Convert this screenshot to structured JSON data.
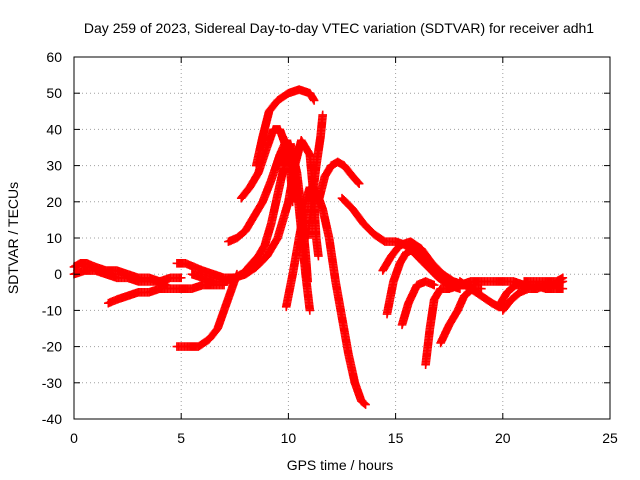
{
  "chart_data": {
    "type": "scatter",
    "title": "Day 259 of 2023, Sidereal Day-to-day VTEC variation (SDTVAR) for receiver adh1",
    "xlabel": "GPS time / hours",
    "ylabel": "SDTVAR / TECUs",
    "xlim": [
      0,
      25
    ],
    "ylim": [
      -40,
      60
    ],
    "xticks": [
      "0",
      "5",
      "10",
      "15",
      "20",
      "25"
    ],
    "yticks": [
      "-40",
      "-30",
      "-20",
      "-10",
      "0",
      "10",
      "20",
      "30",
      "40",
      "50",
      "60"
    ],
    "grid": true,
    "marker": "plus",
    "color": "#ff0000",
    "series": [
      {
        "points": [
          [
            0.0,
            2
          ],
          [
            0.3,
            3
          ],
          [
            0.6,
            3
          ],
          [
            1.0,
            2
          ],
          [
            1.5,
            1
          ],
          [
            2.0,
            1
          ],
          [
            2.5,
            0
          ],
          [
            3.0,
            -1
          ],
          [
            3.5,
            -1
          ],
          [
            4.0,
            -2
          ],
          [
            4.3,
            -3
          ]
        ]
      },
      {
        "points": [
          [
            0.0,
            0
          ],
          [
            0.5,
            1
          ],
          [
            1.0,
            1
          ],
          [
            1.5,
            0
          ],
          [
            2.0,
            -1
          ],
          [
            2.5,
            -1
          ],
          [
            3.0,
            -2
          ],
          [
            3.5,
            -2
          ],
          [
            4.0,
            -2
          ],
          [
            4.5,
            -1
          ],
          [
            5.0,
            -1
          ]
        ]
      },
      {
        "points": [
          [
            1.6,
            -8
          ],
          [
            2.0,
            -7
          ],
          [
            2.5,
            -6
          ],
          [
            3.0,
            -5
          ],
          [
            3.5,
            -5
          ],
          [
            4.0,
            -4
          ],
          [
            4.5,
            -4
          ],
          [
            5.0,
            -4
          ],
          [
            5.5,
            -4
          ],
          [
            6.0,
            -3
          ],
          [
            6.5,
            -3
          ],
          [
            7.0,
            -3
          ]
        ]
      },
      {
        "points": [
          [
            4.8,
            -20
          ],
          [
            5.3,
            -20
          ],
          [
            5.8,
            -20
          ],
          [
            6.3,
            -18
          ],
          [
            6.7,
            -15
          ],
          [
            7.0,
            -10
          ],
          [
            7.3,
            -5
          ],
          [
            7.6,
            0
          ]
        ]
      },
      {
        "points": [
          [
            4.8,
            3
          ],
          [
            5.2,
            3
          ],
          [
            5.6,
            2
          ],
          [
            6.0,
            1
          ],
          [
            6.5,
            0
          ],
          [
            7.0,
            -1
          ],
          [
            7.5,
            -1
          ],
          [
            8.0,
            0
          ],
          [
            8.5,
            2
          ],
          [
            9.0,
            5
          ],
          [
            9.5,
            10
          ],
          [
            10.0,
            20
          ],
          [
            10.3,
            30
          ],
          [
            10.6,
            37
          ],
          [
            11.0,
            33
          ],
          [
            11.2,
            20
          ],
          [
            11.3,
            10
          ],
          [
            11.4,
            5
          ]
        ]
      },
      {
        "points": [
          [
            5.5,
            0
          ],
          [
            6.0,
            -1
          ],
          [
            6.5,
            -2
          ],
          [
            7.0,
            -2
          ],
          [
            7.5,
            -1
          ],
          [
            7.8,
            0
          ]
        ]
      },
      {
        "points": [
          [
            7.2,
            9
          ],
          [
            7.6,
            10
          ],
          [
            8.0,
            12
          ],
          [
            8.4,
            16
          ],
          [
            8.8,
            20
          ],
          [
            9.2,
            26
          ],
          [
            9.6,
            33
          ],
          [
            9.9,
            37
          ],
          [
            10.2,
            33
          ],
          [
            10.4,
            24
          ],
          [
            10.6,
            12
          ],
          [
            10.8,
            0
          ],
          [
            11.0,
            -10
          ]
        ]
      },
      {
        "points": [
          [
            7.8,
            21
          ],
          [
            8.2,
            24
          ],
          [
            8.6,
            28
          ],
          [
            9.0,
            35
          ],
          [
            9.3,
            40
          ],
          [
            9.6,
            40
          ],
          [
            9.9,
            35
          ],
          [
            10.1,
            28
          ],
          [
            10.2,
            20
          ]
        ]
      },
      {
        "points": [
          [
            8.0,
            1
          ],
          [
            8.3,
            3
          ],
          [
            8.6,
            5
          ],
          [
            8.9,
            8
          ],
          [
            9.2,
            14
          ],
          [
            9.5,
            22
          ],
          [
            9.8,
            30
          ],
          [
            10.1,
            36
          ],
          [
            10.4,
            28
          ],
          [
            10.6,
            18
          ],
          [
            10.8,
            6
          ],
          [
            10.9,
            -2
          ]
        ]
      },
      {
        "points": [
          [
            8.5,
            30
          ],
          [
            8.8,
            38
          ],
          [
            9.1,
            45
          ],
          [
            9.5,
            48
          ],
          [
            10.0,
            50
          ],
          [
            10.5,
            51
          ],
          [
            11.0,
            50
          ],
          [
            11.2,
            48
          ]
        ]
      },
      {
        "points": [
          [
            9.9,
            -9
          ],
          [
            10.2,
            0
          ],
          [
            10.5,
            10
          ],
          [
            10.8,
            20
          ],
          [
            11.0,
            24
          ],
          [
            11.3,
            23
          ],
          [
            11.6,
            18
          ],
          [
            11.9,
            10
          ],
          [
            12.2,
            -2
          ],
          [
            12.5,
            -12
          ],
          [
            12.8,
            -22
          ],
          [
            13.1,
            -30
          ],
          [
            13.4,
            -35
          ],
          [
            13.6,
            -36
          ]
        ]
      },
      {
        "points": [
          [
            10.9,
            10
          ],
          [
            11.1,
            20
          ],
          [
            11.3,
            30
          ],
          [
            11.5,
            38
          ],
          [
            11.6,
            44
          ]
        ]
      },
      {
        "points": [
          [
            11.4,
            20
          ],
          [
            11.7,
            27
          ],
          [
            12.0,
            30
          ],
          [
            12.3,
            31
          ],
          [
            12.6,
            30
          ],
          [
            13.0,
            27
          ],
          [
            13.3,
            25
          ]
        ]
      },
      {
        "points": [
          [
            12.5,
            21
          ],
          [
            13.0,
            18
          ],
          [
            13.5,
            14
          ],
          [
            14.0,
            11
          ],
          [
            14.5,
            9
          ],
          [
            15.0,
            9
          ],
          [
            15.5,
            8
          ],
          [
            16.0,
            5
          ],
          [
            16.5,
            2
          ],
          [
            17.0,
            -1
          ],
          [
            17.5,
            -3
          ],
          [
            18.0,
            -4
          ]
        ]
      },
      {
        "points": [
          [
            14.4,
            1
          ],
          [
            14.8,
            5
          ],
          [
            15.2,
            8
          ],
          [
            15.7,
            9
          ],
          [
            16.2,
            7
          ],
          [
            16.7,
            3
          ],
          [
            17.2,
            0
          ],
          [
            17.7,
            -2
          ],
          [
            18.2,
            -3
          ]
        ]
      },
      {
        "points": [
          [
            14.6,
            -11
          ],
          [
            14.9,
            -2
          ],
          [
            15.2,
            3
          ],
          [
            15.5,
            6
          ],
          [
            15.9,
            7
          ],
          [
            16.3,
            5
          ],
          [
            16.7,
            2
          ],
          [
            17.1,
            -1
          ]
        ]
      },
      {
        "points": [
          [
            15.3,
            -14
          ],
          [
            15.6,
            -8
          ],
          [
            16.0,
            -3
          ],
          [
            16.4,
            -2
          ],
          [
            16.8,
            -3
          ]
        ]
      },
      {
        "points": [
          [
            16.4,
            -25
          ],
          [
            16.6,
            -15
          ],
          [
            16.8,
            -7
          ],
          [
            17.1,
            -4
          ],
          [
            17.5,
            -4
          ],
          [
            18.0,
            -3
          ],
          [
            18.5,
            -3
          ]
        ]
      },
      {
        "points": [
          [
            17.1,
            -19
          ],
          [
            17.5,
            -14
          ],
          [
            17.9,
            -10
          ],
          [
            18.2,
            -6
          ],
          [
            18.6,
            -4
          ],
          [
            19.0,
            -4
          ]
        ]
      },
      {
        "points": [
          [
            17.5,
            -3
          ],
          [
            18.0,
            -3
          ],
          [
            18.5,
            -2
          ],
          [
            19.0,
            -2
          ],
          [
            19.5,
            -2
          ],
          [
            20.0,
            -2
          ],
          [
            20.5,
            -2
          ],
          [
            21.0,
            -3
          ]
        ]
      },
      {
        "points": [
          [
            18.0,
            -2
          ],
          [
            18.5,
            -4
          ],
          [
            19.0,
            -6
          ],
          [
            19.5,
            -8
          ],
          [
            19.8,
            -9
          ],
          [
            20.2,
            -5
          ],
          [
            20.6,
            -3
          ],
          [
            21.0,
            -3
          ],
          [
            21.5,
            -3
          ],
          [
            22.0,
            -4
          ],
          [
            22.5,
            -4
          ],
          [
            22.8,
            -4
          ]
        ]
      },
      {
        "points": [
          [
            20.0,
            -10
          ],
          [
            20.4,
            -7
          ],
          [
            20.8,
            -5
          ],
          [
            21.2,
            -4
          ],
          [
            21.6,
            -4
          ],
          [
            22.0,
            -3
          ],
          [
            22.4,
            -3
          ],
          [
            22.8,
            -2
          ]
        ]
      },
      {
        "points": [
          [
            21.0,
            -2
          ],
          [
            21.5,
            -2
          ],
          [
            22.0,
            -2
          ],
          [
            22.5,
            -2
          ],
          [
            22.8,
            -1
          ]
        ]
      }
    ]
  }
}
